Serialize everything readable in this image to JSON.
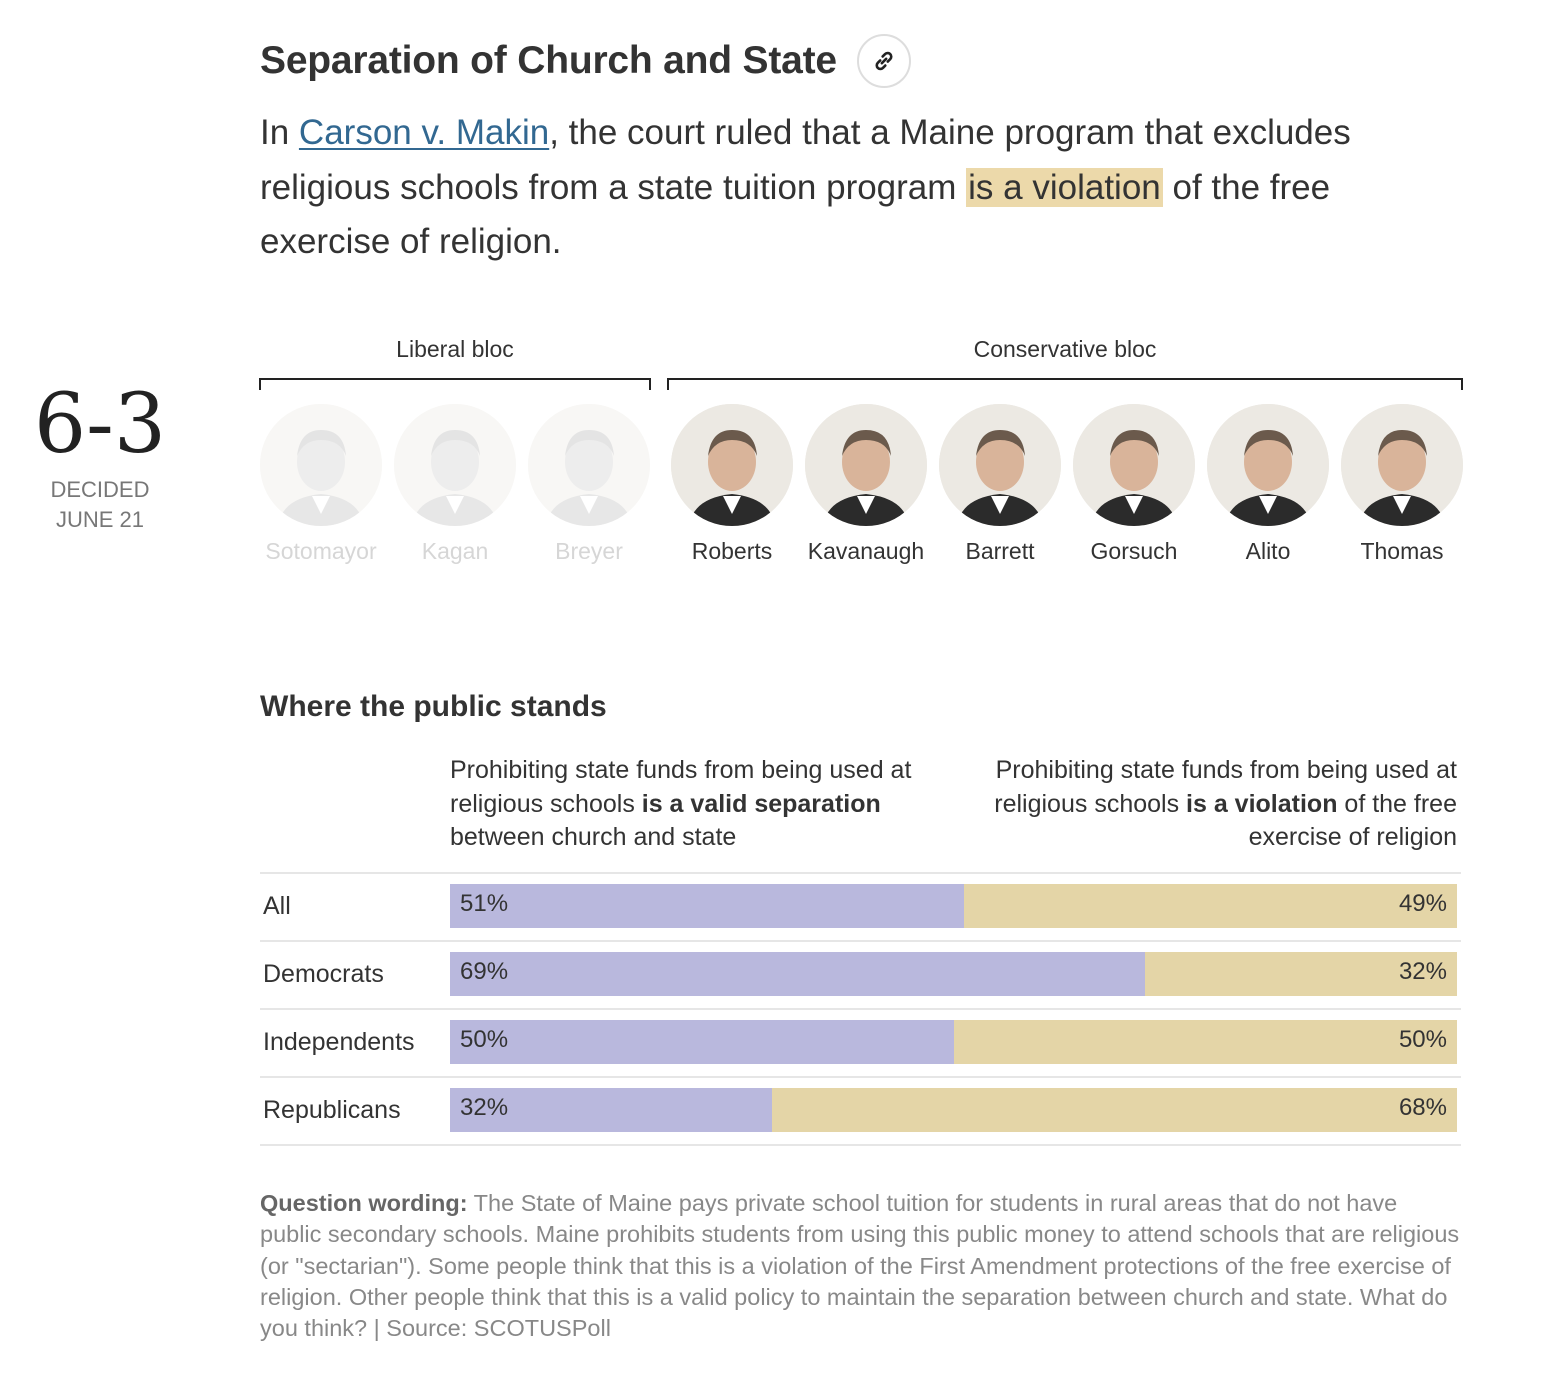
{
  "header": {
    "title": "Separation of Church and State",
    "link_icon": "link-icon"
  },
  "summary": {
    "before": "In ",
    "case_name": "Carson v. Makin",
    "middle": ", the court ruled that a Maine program that excludes religious schools from a state tuition program ",
    "highlight": "is a violation",
    "after": " of the free exercise of religion."
  },
  "decision": {
    "score": "6-3",
    "status": "DECIDED",
    "date": "JUNE 21"
  },
  "blocs": {
    "liberal": "Liberal bloc",
    "conservative": "Conservative bloc"
  },
  "justices": [
    {
      "name": "Sotomayor",
      "bloc": "liberal",
      "in_majority": false
    },
    {
      "name": "Kagan",
      "bloc": "liberal",
      "in_majority": false
    },
    {
      "name": "Breyer",
      "bloc": "liberal",
      "in_majority": false
    },
    {
      "name": "Roberts",
      "bloc": "conservative",
      "in_majority": true
    },
    {
      "name": "Kavanaugh",
      "bloc": "conservative",
      "in_majority": true
    },
    {
      "name": "Barrett",
      "bloc": "conservative",
      "in_majority": true
    },
    {
      "name": "Gorsuch",
      "bloc": "conservative",
      "in_majority": true
    },
    {
      "name": "Alito",
      "bloc": "conservative",
      "in_majority": true
    },
    {
      "name": "Thomas",
      "bloc": "conservative",
      "in_majority": true
    }
  ],
  "public": {
    "title": "Where the public stands",
    "left_head": {
      "pre": "Prohibiting state funds from being used at religious schools ",
      "bold": "is a valid separation",
      "post": " between church and state"
    },
    "right_head": {
      "pre": "Prohibiting state funds from being used at religious schools ",
      "bold": "is a violation",
      "post": " of the free exercise of religion"
    }
  },
  "chart_data": {
    "type": "bar",
    "stacked": true,
    "orientation": "horizontal",
    "categories": [
      "All",
      "Democrats",
      "Independents",
      "Republicans"
    ],
    "series": [
      {
        "name": "Prohibiting state funds from being used at religious schools is a valid separation between church and state",
        "values": [
          51,
          69,
          50,
          32
        ],
        "labels": [
          "51%",
          "69%",
          "50%",
          "32%"
        ],
        "color": "#b9b8dd"
      },
      {
        "name": "Prohibiting state funds from being used at religious schools is a violation of the free exercise of religion",
        "values": [
          49,
          32,
          50,
          68
        ],
        "labels": [
          "49%",
          "32%",
          "50%",
          "68%"
        ],
        "color": "#e4d5a7"
      }
    ]
  },
  "note": {
    "label": "Question wording:",
    "text": " The State of Maine pays private school tuition for students in rural areas that do not have public secondary schools. Maine prohibits students from using this public money to attend schools that are religious (or \"sectarian\"). Some people think that this is a violation of the First Amendment protections of the free exercise of religion. Other people think that this is a valid policy to maintain the separation between church and state. What do you think? | Source: SCOTUSPoll"
  }
}
